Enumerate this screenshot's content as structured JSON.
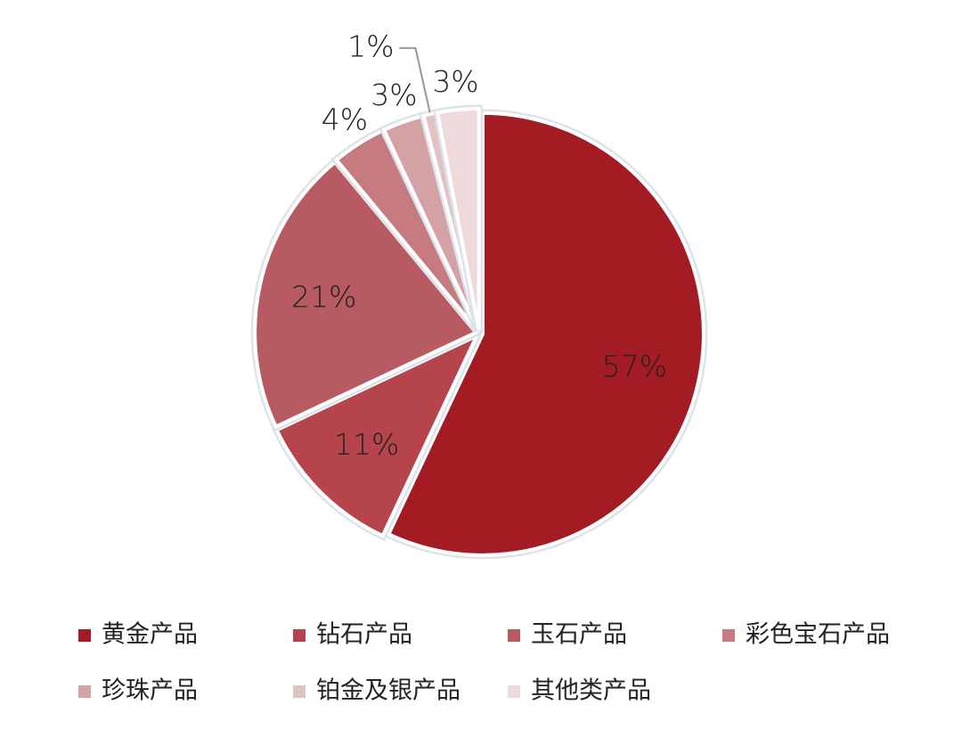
{
  "chart_data": {
    "type": "pie",
    "categories": [
      "黄金产品",
      "钻石产品",
      "玉石产品",
      "彩色宝石产品",
      "珍珠产品",
      "铂金及银产品",
      "其他类产品"
    ],
    "values": [
      57,
      11,
      21,
      4,
      3,
      1,
      3
    ],
    "value_labels": [
      "57%",
      "11%",
      "21%",
      "4%",
      "3%",
      "1%",
      "3%"
    ],
    "colors": [
      "#a31c24",
      "#b5444c",
      "#b85a61",
      "#c67b80",
      "#d4a1a5",
      "#e2c3c5",
      "#eedadb"
    ],
    "legend": "bottom"
  }
}
